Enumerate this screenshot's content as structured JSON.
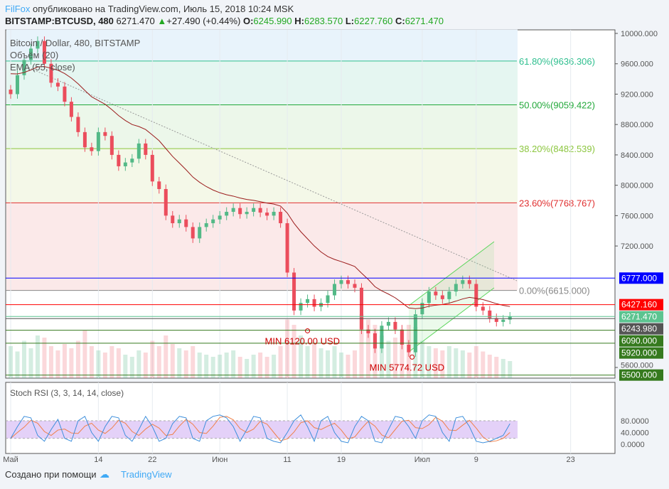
{
  "header": {
    "author": "FilFox",
    "published": "опубликовано на TradingView.com, Июль 15, 2018 10:24 MSK",
    "symbol": "BITSTAMP:BTCUSD, 480",
    "last": "6271.470",
    "change": "+27.490 (+0.44%)",
    "o_label": "O:",
    "o": "6245.990",
    "h_label": "H:",
    "h": "6283.570",
    "l_label": "L:",
    "l": "6227.760",
    "c_label": "C:",
    "c": "6271.470"
  },
  "legend": {
    "series": "Bitcoin / Dollar, 480, BITSTAMP",
    "volume": "Объём (20)",
    "ema": "EMA (55, close)",
    "stoch": "Stoch RSI (3, 3, 14, 14, close)"
  },
  "footer": {
    "created": "Создано при помощи",
    "brand": "TradingView"
  },
  "colors": {
    "up": "#53b987",
    "down": "#eb4d5c",
    "ema": "#9b1c1c",
    "blue": "#0000ff",
    "green_line": "#2e7d17",
    "stoch_k": "#3d8fdc",
    "stoch_d": "#f0804a",
    "stoch_band": "#e4d1f8"
  },
  "chart_data": {
    "type": "candlestick",
    "x_ticks": [
      {
        "label": "Май",
        "day": 0
      },
      {
        "label": "14",
        "day": 13
      },
      {
        "label": "22",
        "day": 21
      },
      {
        "label": "Июн",
        "day": 31
      },
      {
        "label": "11",
        "day": 41
      },
      {
        "label": "19",
        "day": 49
      },
      {
        "label": "Июл",
        "day": 61
      },
      {
        "label": "9",
        "day": 69
      },
      {
        "label": "23",
        "day": 83
      }
    ],
    "y_ticks": [
      10000,
      9600,
      9200,
      8800,
      8400,
      8000,
      7600,
      7200,
      5600
    ],
    "ylim": [
      5470,
      10050
    ],
    "closes": [
      9200,
      9450,
      9650,
      9800,
      9900,
      9600,
      9350,
      9300,
      9100,
      8900,
      8700,
      8500,
      8450,
      8700,
      8650,
      8400,
      8250,
      8300,
      8350,
      8550,
      8400,
      8050,
      7950,
      7600,
      7500,
      7550,
      7450,
      7300,
      7450,
      7500,
      7550,
      7600,
      7650,
      7700,
      7620,
      7650,
      7700,
      7640,
      7600,
      7650,
      7500,
      6850,
      6350,
      6450,
      6500,
      6400,
      6450,
      6550,
      6700,
      6750,
      6700,
      6650,
      6100,
      6050,
      5850,
      6150,
      6200,
      6100,
      5900,
      5800,
      6300,
      6450,
      6600,
      6550,
      6500,
      6600,
      6700,
      6750,
      6700,
      6400,
      6350,
      6250,
      6200,
      6230,
      6270
    ],
    "volumes": [
      30,
      25,
      35,
      28,
      40,
      38,
      30,
      26,
      32,
      28,
      35,
      45,
      30,
      26,
      24,
      30,
      28,
      22,
      20,
      26,
      24,
      35,
      30,
      40,
      32,
      28,
      26,
      30,
      24,
      22,
      20,
      22,
      24,
      26,
      20,
      18,
      22,
      24,
      20,
      22,
      30,
      55,
      50,
      40,
      30,
      32,
      28,
      26,
      30,
      24,
      22,
      26,
      60,
      55,
      50,
      40,
      35,
      38,
      45,
      50,
      48,
      35,
      30,
      28,
      26,
      30,
      28,
      26,
      24,
      30,
      25,
      22,
      20,
      18,
      16
    ],
    "stoch_k": [
      20,
      60,
      95,
      90,
      30,
      10,
      50,
      85,
      20,
      10,
      80,
      95,
      40,
      10,
      60,
      95,
      90,
      30,
      10,
      50,
      95,
      60,
      10,
      20,
      70,
      95,
      90,
      20,
      10,
      80,
      95,
      100,
      90,
      60,
      10,
      50,
      95,
      90,
      20,
      10,
      5,
      40,
      80,
      100,
      60,
      10,
      80,
      95,
      40,
      10,
      5,
      60,
      95,
      80,
      10,
      5,
      50,
      95,
      90,
      60,
      20,
      80,
      100,
      95,
      40,
      10,
      90,
      95,
      60,
      10,
      5,
      10,
      20,
      30,
      70
    ],
    "stoch_ylim": [
      -5,
      105
    ],
    "stoch_ticks": [
      80,
      40,
      0
    ],
    "stoch_band": [
      20,
      80
    ],
    "fib": [
      {
        "label": "61.80%(9636.306)",
        "value": 9636.306,
        "color": "#2fbf8f"
      },
      {
        "label": "50.00%(9059.422)",
        "value": 9059.422,
        "color": "#22a83a"
      },
      {
        "label": "38.20%(8482.539)",
        "value": 8482.539,
        "color": "#8cc63f"
      },
      {
        "label": "23.60%(7768.767)",
        "value": 7768.767,
        "color": "#e03030"
      },
      {
        "label": "0.00%(6615.000)",
        "value": 6615,
        "color": "#888888"
      }
    ],
    "levels": [
      {
        "label": "6777.000",
        "value": 6777,
        "color": "#0000ff"
      },
      {
        "label": "6427.160",
        "value": 6427.16,
        "color": "#ff0000"
      },
      {
        "label": "6271.470",
        "value": 6271.47,
        "color": "#5cc490"
      },
      {
        "label": "6243.980",
        "value": 6243.98,
        "color": "#555555"
      },
      {
        "label": "6090.000",
        "value": 6090,
        "color": "#357a1e"
      },
      {
        "label": "5920.000",
        "value": 5920,
        "color": "#357a1e"
      },
      {
        "label": "5500.000",
        "value": 5500,
        "color": "#357a1e"
      }
    ],
    "annotations": [
      {
        "text": "MIN 6120.00 USD",
        "day": 44,
        "value": 6120
      },
      {
        "text": "MIN 5774.72 USD",
        "day": 59.5,
        "value": 5774.72
      }
    ]
  }
}
